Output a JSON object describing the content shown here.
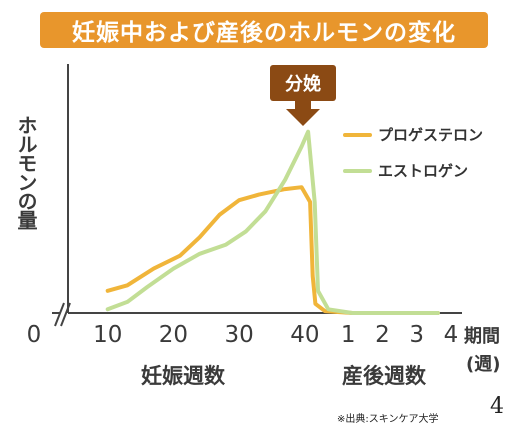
{
  "chart_data": {
    "type": "line",
    "title": "妊娠中および産後のホルモンの変化",
    "ylabel": "ホルモンの量",
    "x_pregnancy": {
      "label": "妊娠週数",
      "ticks": [
        "10",
        "20",
        "30",
        "40"
      ],
      "range": [
        0,
        42
      ]
    },
    "x_postpartum": {
      "label": "産後週数",
      "ticks": [
        "1",
        "2",
        "3",
        "4"
      ],
      "range": [
        0,
        4
      ]
    },
    "x_origin_label": "0",
    "unit_label_1": "期間",
    "unit_label_2": "(週)",
    "annotation": "分娩",
    "legend": "top-right",
    "series": [
      {
        "name": "プロゲステロン",
        "color": "#f0b53a",
        "points": [
          {
            "seg": "preg",
            "x": 10,
            "y": 0.12
          },
          {
            "seg": "preg",
            "x": 13,
            "y": 0.15
          },
          {
            "seg": "preg",
            "x": 17,
            "y": 0.24
          },
          {
            "seg": "preg",
            "x": 21,
            "y": 0.31
          },
          {
            "seg": "preg",
            "x": 24,
            "y": 0.41
          },
          {
            "seg": "preg",
            "x": 27,
            "y": 0.53
          },
          {
            "seg": "preg",
            "x": 30,
            "y": 0.61
          },
          {
            "seg": "preg",
            "x": 33,
            "y": 0.64
          },
          {
            "seg": "preg",
            "x": 37,
            "y": 0.67
          },
          {
            "seg": "preg",
            "x": 39.5,
            "y": 0.68
          },
          {
            "seg": "preg",
            "x": 40.8,
            "y": 0.6
          },
          {
            "seg": "preg",
            "x": 41.2,
            "y": 0.2
          },
          {
            "seg": "preg",
            "x": 41.6,
            "y": 0.05
          },
          {
            "seg": "post",
            "x": 0.2,
            "y": 0.01
          },
          {
            "seg": "post",
            "x": 1,
            "y": 0.0
          },
          {
            "seg": "post",
            "x": 2,
            "y": 0.0
          },
          {
            "seg": "post",
            "x": 3,
            "y": 0.0
          },
          {
            "seg": "post",
            "x": 3.5,
            "y": 0.0
          }
        ]
      },
      {
        "name": "エストロゲン",
        "color": "#c2de95",
        "points": [
          {
            "seg": "preg",
            "x": 10,
            "y": 0.02
          },
          {
            "seg": "preg",
            "x": 13,
            "y": 0.06
          },
          {
            "seg": "preg",
            "x": 16,
            "y": 0.14
          },
          {
            "seg": "preg",
            "x": 20,
            "y": 0.24
          },
          {
            "seg": "preg",
            "x": 24,
            "y": 0.32
          },
          {
            "seg": "preg",
            "x": 28,
            "y": 0.37
          },
          {
            "seg": "preg",
            "x": 31,
            "y": 0.44
          },
          {
            "seg": "preg",
            "x": 34,
            "y": 0.55
          },
          {
            "seg": "preg",
            "x": 37,
            "y": 0.72
          },
          {
            "seg": "preg",
            "x": 39.5,
            "y": 0.9
          },
          {
            "seg": "preg",
            "x": 40.5,
            "y": 0.98
          },
          {
            "seg": "preg",
            "x": 41.5,
            "y": 0.6
          },
          {
            "seg": "preg",
            "x": 42,
            "y": 0.12
          },
          {
            "seg": "post",
            "x": 0.3,
            "y": 0.02
          },
          {
            "seg": "post",
            "x": 1,
            "y": 0.0
          },
          {
            "seg": "post",
            "x": 2,
            "y": 0.0
          },
          {
            "seg": "post",
            "x": 3,
            "y": 0.0
          },
          {
            "seg": "post",
            "x": 3.5,
            "y": 0.0
          }
        ]
      }
    ]
  },
  "source_note": "※出典:スキンケア大学",
  "page_number": "4"
}
